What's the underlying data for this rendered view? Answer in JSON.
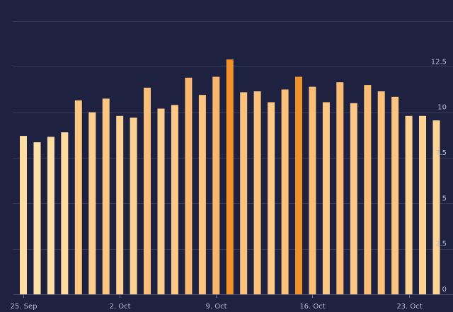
{
  "chart_data": {
    "type": "bar",
    "categories": [
      "25 Sep",
      "26 Sep",
      "27 Sep",
      "28 Sep",
      "29 Sep",
      "30 Sep",
      "1 Oct",
      "2 Oct",
      "3 Oct",
      "4 Oct",
      "5 Oct",
      "6 Oct",
      "7 Oct",
      "8 Oct",
      "9 Oct",
      "10 Oct",
      "11 Oct",
      "12 Oct",
      "13 Oct",
      "14 Oct",
      "15 Oct",
      "16 Oct",
      "17 Oct",
      "18 Oct",
      "19 Oct",
      "20 Oct",
      "21 Oct",
      "22 Oct",
      "23 Oct",
      "24 Oct",
      "25 Oct"
    ],
    "values": [
      8.7,
      8.35,
      8.65,
      8.9,
      10.65,
      10.0,
      10.75,
      9.8,
      9.7,
      11.35,
      10.2,
      10.4,
      11.9,
      10.95,
      11.95,
      12.9,
      11.1,
      11.15,
      10.55,
      11.25,
      11.95,
      11.4,
      10.55,
      11.65,
      10.5,
      11.5,
      11.15,
      10.85,
      9.8,
      9.8,
      9.55
    ],
    "highlight_index": [
      15,
      20
    ],
    "xticks": [
      {
        "index": 0,
        "label": "25. Sep"
      },
      {
        "index": 7,
        "label": "2. Oct"
      },
      {
        "index": 14,
        "label": "9. Oct"
      },
      {
        "index": 21,
        "label": "16. Oct"
      },
      {
        "index": 28,
        "label": "23. Oct"
      }
    ],
    "yticks": [
      0,
      2.5,
      5,
      7.5,
      10,
      12.5
    ],
    "ylim": [
      0,
      15
    ],
    "grid": true,
    "colors": {
      "background": "#1e2140",
      "grid": "#363a5c",
      "bar_low": "#ffe2a8",
      "bar_mid": "#f9b46a",
      "bar_high": "#f0912a",
      "tick_text": "#b9bccf"
    }
  }
}
